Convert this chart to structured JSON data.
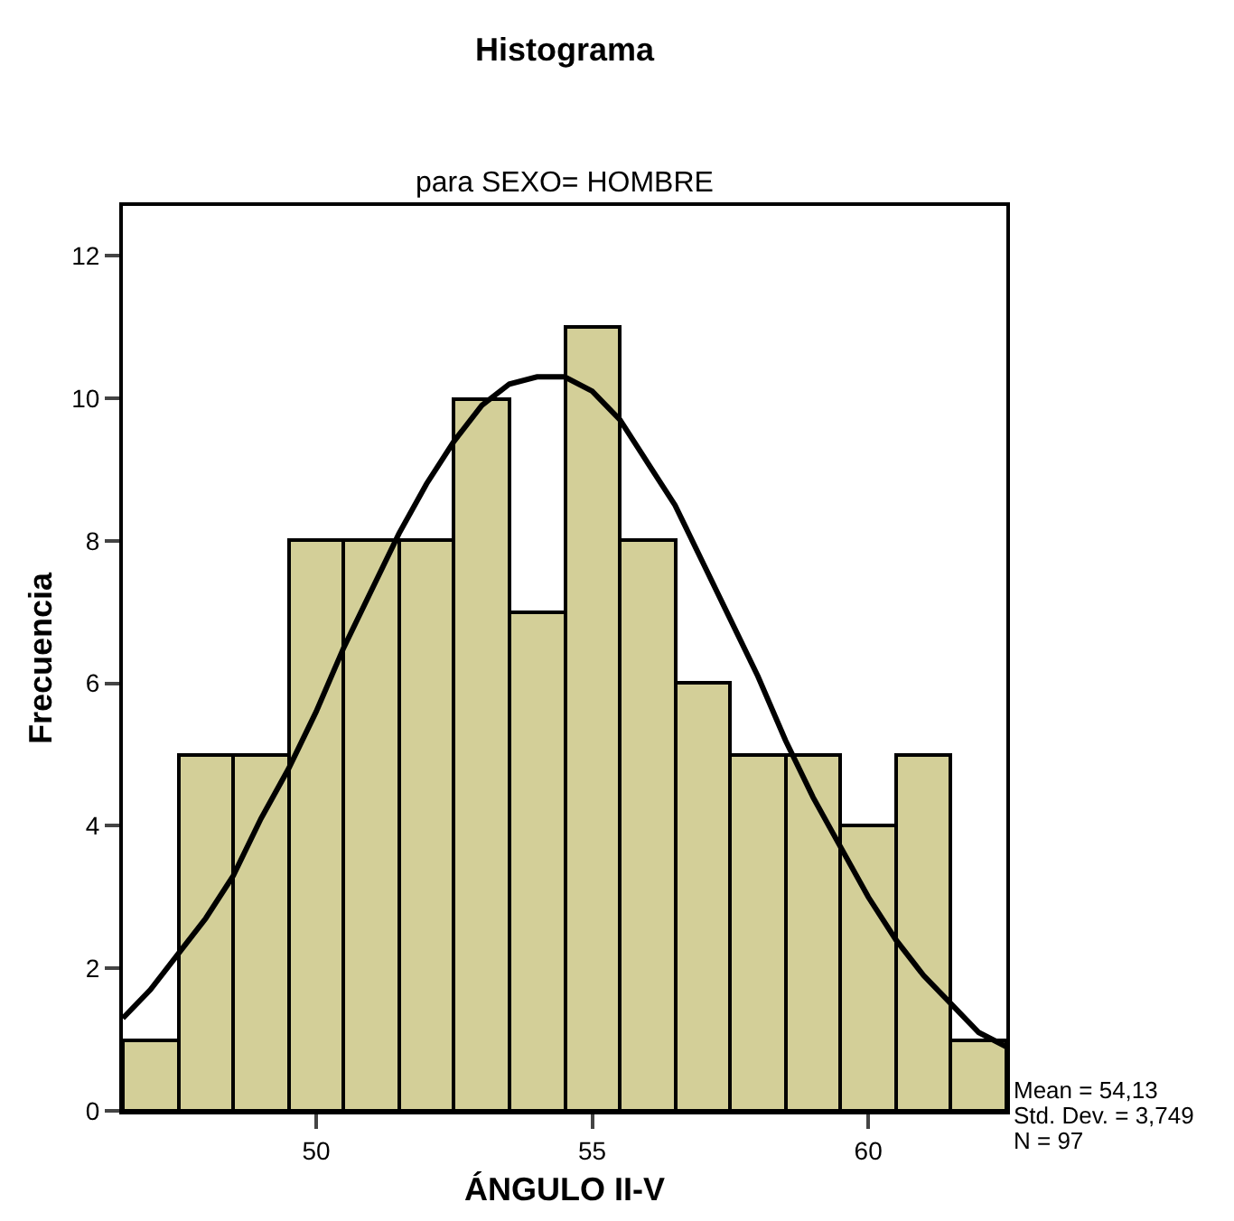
{
  "chart_data": {
    "type": "histogram",
    "title": "Histograma",
    "subtitle": "para SEXO= HOMBRE",
    "xlabel": "ÁNGULO II-V",
    "ylabel": "Frecuencia",
    "bins": [
      46.5,
      47.5,
      48.5,
      49.5,
      50.5,
      51.5,
      52.5,
      53.5,
      54.5,
      55.5,
      56.5,
      57.5,
      58.5,
      59.5,
      60.5,
      61.5,
      62.5
    ],
    "values": [
      1,
      5,
      5,
      8,
      8,
      8,
      10,
      7,
      11,
      8,
      6,
      5,
      5,
      4,
      5,
      1
    ],
    "color": "#d3cf98",
    "series": [
      {
        "type": "line",
        "color": "#000000",
        "x": [
          46.5,
          47,
          47.5,
          48,
          48.5,
          49,
          49.5,
          50,
          50.5,
          51,
          51.5,
          52,
          52.5,
          53,
          53.5,
          54,
          54.5,
          55,
          55.5,
          56,
          56.5,
          57,
          57.5,
          58,
          58.5,
          59,
          59.5,
          60,
          60.5,
          61,
          61.5,
          62,
          62.5
        ],
        "values": [
          1.3,
          1.7,
          2.2,
          2.7,
          3.3,
          4.1,
          4.8,
          5.6,
          6.5,
          7.3,
          8.1,
          8.8,
          9.4,
          9.9,
          10.2,
          10.3,
          10.3,
          10.1,
          9.7,
          9.1,
          8.5,
          7.7,
          6.9,
          6.1,
          5.2,
          4.4,
          3.7,
          3.0,
          2.4,
          1.9,
          1.5,
          1.1,
          0.9
        ]
      }
    ],
    "xlim": [
      46.5,
      62.5
    ],
    "xticks": [
      50,
      55,
      60
    ],
    "ylim": [
      0,
      12.7
    ],
    "yticks": [
      0,
      2,
      4,
      6,
      8,
      10,
      12
    ],
    "grid": false,
    "annotations": [
      "Mean = 54,13",
      "Std. Dev. = 3,749",
      "N = 97"
    ]
  }
}
